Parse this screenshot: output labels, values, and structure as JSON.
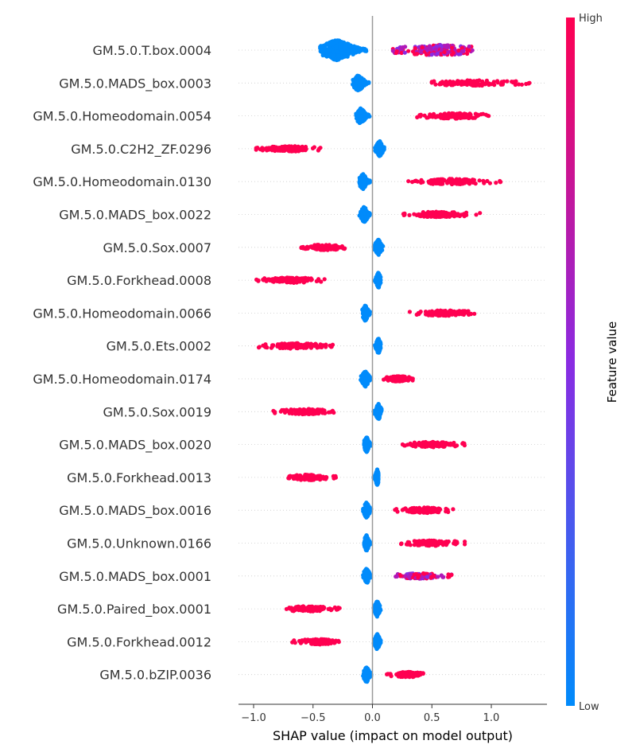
{
  "chart_data": {
    "type": "scatter",
    "subtype": "shap-beeswarm",
    "title": "",
    "xlabel": "SHAP value (impact on model output)",
    "xlim": [
      -1.12,
      1.47
    ],
    "xticks": [
      -1.0,
      -0.5,
      0.0,
      0.5,
      1.0
    ],
    "xtick_labels": [
      "−1.0",
      "−0.5",
      "0.0",
      "0.5",
      "1.0"
    ],
    "zero_line": 0.0,
    "grid": false,
    "colorbar": {
      "label": "Feature value",
      "high_label": "High",
      "low_label": "Low",
      "low_color": "#008bfb",
      "mid_color": "#8a2be2",
      "high_color": "#ff0051",
      "placement": "right"
    },
    "features": [
      {
        "name": "GM.5.0.T.box.0004",
        "low": {
          "min": -0.44,
          "max": -0.05,
          "center": -0.3
        },
        "high": {
          "min": 0.17,
          "max": 0.86,
          "center": 0.55
        },
        "mixed": true
      },
      {
        "name": "GM.5.0.MADS_box.0003",
        "low": {
          "min": -0.17,
          "max": -0.03,
          "center": -0.12
        },
        "high": {
          "min": 0.48,
          "max": 1.36,
          "center": 0.85
        },
        "mixed": false
      },
      {
        "name": "GM.5.0.Homeodomain.0054",
        "low": {
          "min": -0.14,
          "max": -0.02,
          "center": -0.1
        },
        "high": {
          "min": 0.37,
          "max": 1.06,
          "center": 0.7
        },
        "mixed": false
      },
      {
        "name": "GM.5.0.C2H2_ZF.0296",
        "low": {
          "min": 0.02,
          "max": 0.1,
          "center": 0.06
        },
        "high": {
          "min": -1.02,
          "max": -0.43,
          "center": -0.7
        },
        "mixed": false
      },
      {
        "name": "GM.5.0.Homeodomain.0130",
        "low": {
          "min": -0.11,
          "max": -0.02,
          "center": -0.08
        },
        "high": {
          "min": 0.3,
          "max": 1.08,
          "center": 0.65
        },
        "mixed": false
      },
      {
        "name": "GM.5.0.MADS_box.0022",
        "low": {
          "min": -0.11,
          "max": -0.02,
          "center": -0.07
        },
        "high": {
          "min": 0.25,
          "max": 0.91,
          "center": 0.55
        },
        "mixed": false
      },
      {
        "name": "GM.5.0.Sox.0007",
        "low": {
          "min": 0.01,
          "max": 0.09,
          "center": 0.05
        },
        "high": {
          "min": -0.6,
          "max": -0.18,
          "center": -0.4
        },
        "mixed": false
      },
      {
        "name": "GM.5.0.Forkhead.0008",
        "low": {
          "min": 0.02,
          "max": 0.07,
          "center": 0.05
        },
        "high": {
          "min": -0.99,
          "max": -0.38,
          "center": -0.7
        },
        "mixed": false
      },
      {
        "name": "GM.5.0.Homeodomain.0066",
        "low": {
          "min": -0.09,
          "max": -0.02,
          "center": -0.06
        },
        "high": {
          "min": 0.28,
          "max": 0.94,
          "center": 0.6
        },
        "mixed": false
      },
      {
        "name": "GM.5.0.Ets.0002",
        "low": {
          "min": 0.02,
          "max": 0.07,
          "center": 0.05
        },
        "high": {
          "min": -0.97,
          "max": -0.33,
          "center": -0.65
        },
        "mixed": false
      },
      {
        "name": "GM.5.0.Homeodomain.0174",
        "low": {
          "min": -0.1,
          "max": -0.01,
          "center": -0.06
        },
        "high": {
          "min": 0.09,
          "max": 0.34,
          "center": 0.22
        },
        "mixed": false
      },
      {
        "name": "GM.5.0.Sox.0019",
        "low": {
          "min": 0.01,
          "max": 0.08,
          "center": 0.05
        },
        "high": {
          "min": -0.84,
          "max": -0.3,
          "center": -0.55
        },
        "mixed": false
      },
      {
        "name": "GM.5.0.MADS_box.0020",
        "low": {
          "min": -0.07,
          "max": -0.01,
          "center": -0.05
        },
        "high": {
          "min": 0.24,
          "max": 0.78,
          "center": 0.5
        },
        "mixed": false
      },
      {
        "name": "GM.5.0.Forkhead.0013",
        "low": {
          "min": 0.01,
          "max": 0.05,
          "center": 0.04
        },
        "high": {
          "min": -0.75,
          "max": -0.3,
          "center": -0.55
        },
        "mixed": false
      },
      {
        "name": "GM.5.0.MADS_box.0016",
        "low": {
          "min": -0.08,
          "max": -0.01,
          "center": -0.05
        },
        "high": {
          "min": 0.18,
          "max": 0.69,
          "center": 0.45
        },
        "mixed": false
      },
      {
        "name": "GM.5.0.Unknown.0166",
        "low": {
          "min": -0.07,
          "max": -0.01,
          "center": -0.05
        },
        "high": {
          "min": 0.24,
          "max": 0.79,
          "center": 0.5
        },
        "mixed": false
      },
      {
        "name": "GM.5.0.MADS_box.0001",
        "low": {
          "min": -0.08,
          "max": -0.01,
          "center": -0.05
        },
        "high": {
          "min": 0.18,
          "max": 0.67,
          "center": 0.4
        },
        "mixed": true
      },
      {
        "name": "GM.5.0.Paired_box.0001",
        "low": {
          "min": 0.01,
          "max": 0.07,
          "center": 0.04
        },
        "high": {
          "min": -0.73,
          "max": -0.27,
          "center": -0.55
        },
        "mixed": false
      },
      {
        "name": "GM.5.0.Forkhead.0012",
        "low": {
          "min": 0.01,
          "max": 0.07,
          "center": 0.04
        },
        "high": {
          "min": -0.68,
          "max": -0.27,
          "center": -0.45
        },
        "mixed": false
      },
      {
        "name": "GM.5.0.bZIP.0036",
        "low": {
          "min": -0.08,
          "max": -0.01,
          "center": -0.05
        },
        "high": {
          "min": 0.12,
          "max": 0.44,
          "center": 0.3
        },
        "mixed": false
      }
    ]
  }
}
